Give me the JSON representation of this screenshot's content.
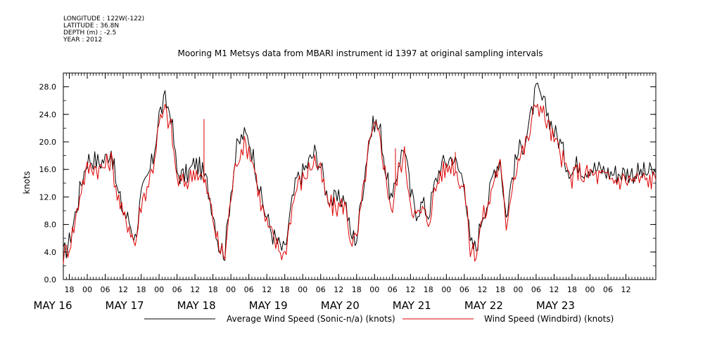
{
  "header": {
    "longitude": "LONGITUDE : 122W(-122)",
    "latitude": "LATITUDE : 36.8N",
    "depth": "DEPTH (m) : -2.5",
    "year": "YEAR : 2012"
  },
  "chart_data": {
    "type": "line",
    "title": "Mooring M1 Metsys data from MBARI instrument id 1397 at original sampling intervals",
    "ylabel": "knots",
    "xlabel": "",
    "ylim": [
      0,
      30
    ],
    "yticks": [
      0,
      4,
      8,
      12,
      16,
      20,
      24,
      28
    ],
    "ytick_labels": [
      "0.0",
      "4.0",
      "8.0",
      "12.0",
      "16.0",
      "20.0",
      "24.0",
      "28.0"
    ],
    "xlim_hours": [
      -8,
      190
    ],
    "hour_ticks": [
      {
        "h": -6,
        "label": "18"
      },
      {
        "h": 0,
        "label": "00"
      },
      {
        "h": 6,
        "label": "06"
      },
      {
        "h": 12,
        "label": "12"
      },
      {
        "h": 18,
        "label": "18"
      },
      {
        "h": 24,
        "label": "00"
      },
      {
        "h": 30,
        "label": "06"
      },
      {
        "h": 36,
        "label": "12"
      },
      {
        "h": 42,
        "label": "18"
      },
      {
        "h": 48,
        "label": "00"
      },
      {
        "h": 54,
        "label": "06"
      },
      {
        "h": 60,
        "label": "12"
      },
      {
        "h": 66,
        "label": "18"
      },
      {
        "h": 72,
        "label": "00"
      },
      {
        "h": 78,
        "label": "06"
      },
      {
        "h": 84,
        "label": "12"
      },
      {
        "h": 90,
        "label": "18"
      },
      {
        "h": 96,
        "label": "00"
      },
      {
        "h": 102,
        "label": "06"
      },
      {
        "h": 108,
        "label": "12"
      },
      {
        "h": 114,
        "label": "18"
      },
      {
        "h": 120,
        "label": "00"
      },
      {
        "h": 126,
        "label": "06"
      },
      {
        "h": 132,
        "label": "12"
      },
      {
        "h": 138,
        "label": "18"
      },
      {
        "h": 144,
        "label": "00"
      },
      {
        "h": 150,
        "label": "06"
      },
      {
        "h": 156,
        "label": "12"
      },
      {
        "h": 162,
        "label": "18"
      },
      {
        "h": 168,
        "label": "00"
      },
      {
        "h": 174,
        "label": "06"
      },
      {
        "h": 180,
        "label": "12"
      }
    ],
    "date_labels": [
      {
        "h": -12,
        "label": "MAY 16"
      },
      {
        "h": 12,
        "label": "MAY 17"
      },
      {
        "h": 36,
        "label": "MAY 18"
      },
      {
        "h": 60,
        "label": "MAY 19"
      },
      {
        "h": 84,
        "label": "MAY 20"
      },
      {
        "h": 108,
        "label": "MAY 21"
      },
      {
        "h": 132,
        "label": "MAY 22"
      },
      {
        "h": 156,
        "label": "MAY 23"
      }
    ],
    "x_hours": [
      -8,
      -6,
      -4,
      -2,
      0,
      2,
      4,
      6,
      8,
      10,
      12,
      14,
      16,
      18,
      20,
      22,
      24,
      26,
      28,
      30,
      32,
      34,
      36,
      38,
      40,
      42,
      44,
      46,
      48,
      50,
      52,
      54,
      56,
      58,
      60,
      62,
      64,
      66,
      68,
      70,
      72,
      74,
      76,
      78,
      80,
      82,
      84,
      86,
      88,
      90,
      92,
      94,
      96,
      98,
      100,
      102,
      104,
      106,
      108,
      110,
      112,
      114,
      116,
      118,
      120,
      122,
      124,
      126,
      128,
      130,
      132,
      134,
      136,
      138,
      140,
      142,
      144,
      146,
      148,
      150,
      152,
      154,
      156,
      158,
      160,
      162,
      164,
      166,
      168,
      170,
      172,
      174,
      176,
      178,
      180,
      182,
      184,
      186,
      188,
      190
    ],
    "series": [
      {
        "name": "Average Wind Speed (Sonic-n/a) (knots)",
        "color": "#000000",
        "values": [
          3.5,
          5.5,
          9.5,
          14.0,
          17.5,
          17.5,
          17.0,
          17.5,
          19.0,
          13.0,
          10.0,
          8.5,
          6.0,
          12.0,
          14.5,
          17.5,
          24.0,
          26.0,
          24.0,
          15.5,
          15.0,
          15.5,
          17.0,
          16.0,
          14.0,
          10.0,
          5.0,
          4.0,
          13.0,
          19.0,
          21.0,
          20.5,
          17.0,
          12.0,
          9.0,
          6.5,
          5.0,
          4.0,
          10.0,
          14.5,
          15.5,
          17.0,
          18.5,
          16.5,
          12.5,
          11.5,
          11.5,
          12.0,
          6.5,
          6.0,
          13.0,
          20.0,
          23.0,
          21.5,
          15.0,
          11.0,
          17.0,
          19.5,
          12.5,
          10.0,
          11.0,
          9.5,
          13.5,
          16.5,
          17.0,
          18.0,
          16.0,
          14.5,
          5.0,
          4.5,
          9.5,
          11.5,
          16.0,
          17.5,
          9.0,
          15.0,
          18.5,
          20.0,
          23.0,
          27.5,
          26.0,
          24.0,
          21.5,
          20.0,
          17.0,
          15.5,
          17.0,
          16.0,
          16.5,
          16.0,
          16.0,
          15.5,
          15.5,
          15.5,
          15.5,
          15.5,
          15.5,
          15.5,
          15.5,
          15.5
        ],
        "spikes": []
      },
      {
        "name": "Wind Speed (Windbird) (knots)",
        "color": "#dd0000",
        "values": [
          3.5,
          5.0,
          8.5,
          13.5,
          16.0,
          16.5,
          16.0,
          16.5,
          17.5,
          12.5,
          9.0,
          8.0,
          5.0,
          11.0,
          13.5,
          16.5,
          22.5,
          24.5,
          22.0,
          14.5,
          14.0,
          14.5,
          16.0,
          15.0,
          13.0,
          9.0,
          4.5,
          3.5,
          12.0,
          17.5,
          19.5,
          19.0,
          16.0,
          11.0,
          8.0,
          6.0,
          4.5,
          3.5,
          9.5,
          13.5,
          14.5,
          16.0,
          17.5,
          15.5,
          11.5,
          10.5,
          10.5,
          11.0,
          6.0,
          5.5,
          12.0,
          19.0,
          22.0,
          20.5,
          14.0,
          10.0,
          16.0,
          18.0,
          11.5,
          9.0,
          10.0,
          8.5,
          12.5,
          15.5,
          16.0,
          17.0,
          15.0,
          13.5,
          4.5,
          4.0,
          9.0,
          10.5,
          15.0,
          16.5,
          8.0,
          14.0,
          17.5,
          19.0,
          21.5,
          26.0,
          24.5,
          22.5,
          20.0,
          18.5,
          16.0,
          14.5,
          16.0,
          15.0,
          15.5,
          15.0,
          15.0,
          14.5,
          14.5,
          14.5,
          14.5,
          14.5,
          14.5,
          14.5,
          14.5,
          14.5
        ],
        "spikes": [
          {
            "h": 39,
            "v": 23.3
          },
          {
            "h": 123,
            "v": 18.5
          },
          {
            "h": 103,
            "v": 19.0
          }
        ]
      }
    ],
    "legend_position": "bottom"
  }
}
